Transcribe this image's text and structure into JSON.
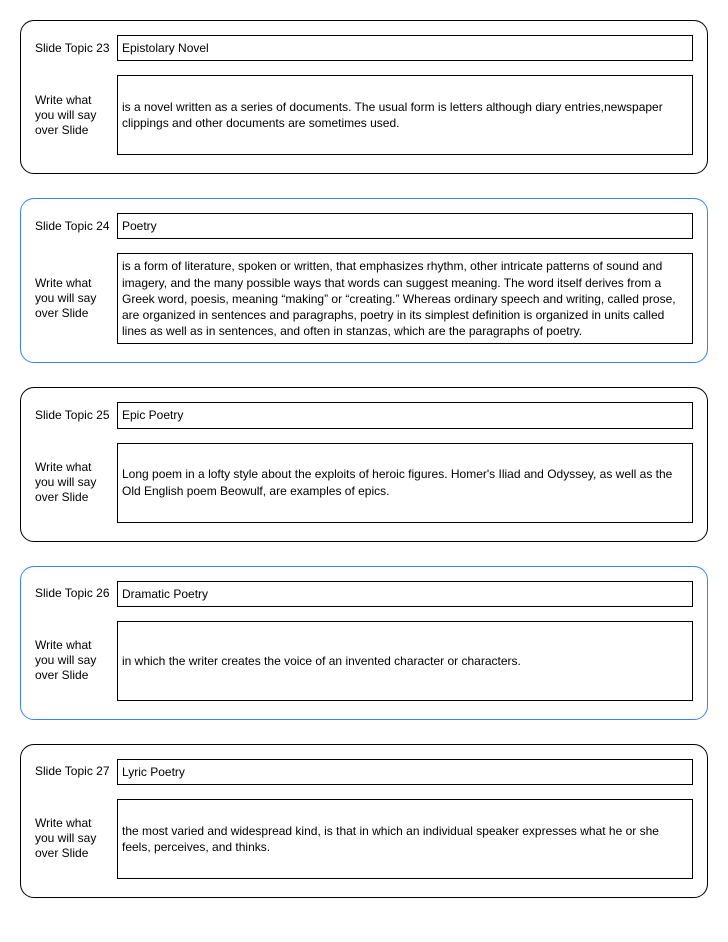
{
  "labels": {
    "topic_prefix": "Slide Topic ",
    "notes": "Write what you will say over Slide"
  },
  "colors": {
    "black": "#000000",
    "blue": "#3b82f6",
    "background": "#ffffff"
  },
  "cards": [
    {
      "num": "23",
      "border": "black",
      "topic": "Epistolary Novel",
      "notes": "is a novel written as a series of documents. The usual form is letters although diary entries,newspaper clippings and other documents are sometimes used."
    },
    {
      "num": "24",
      "border": "blue",
      "topic": "Poetry",
      "notes": "is a form of literature, spoken or written, that emphasizes rhythm, other intricate patterns of sound and imagery, and the many possible ways that words can suggest meaning. The word itself derives from a Greek word, poesis, meaning “making” or “creating.” Whereas ordinary speech and writing, called prose, are organized in sentences and paragraphs, poetry in its simplest definition is organized in units called lines as well as in sentences, and often in stanzas, which are the paragraphs of poetry."
    },
    {
      "num": "25",
      "border": "black",
      "topic": "Epic Poetry",
      "notes": "Long poem in a lofty style about the exploits of heroic figures. Homer's Iliad and Odyssey, as well as the Old English poem Beowulf, are examples of epics."
    },
    {
      "num": "26",
      "border": "blue",
      "topic": "Dramatic Poetry",
      "notes": "in which the writer creates the voice of an invented character or characters."
    },
    {
      "num": "27",
      "border": "black",
      "topic": "Lyric Poetry",
      "notes": "the most varied and widespread kind, is that in which an individual speaker expresses what he or she feels, perceives, and thinks."
    }
  ]
}
